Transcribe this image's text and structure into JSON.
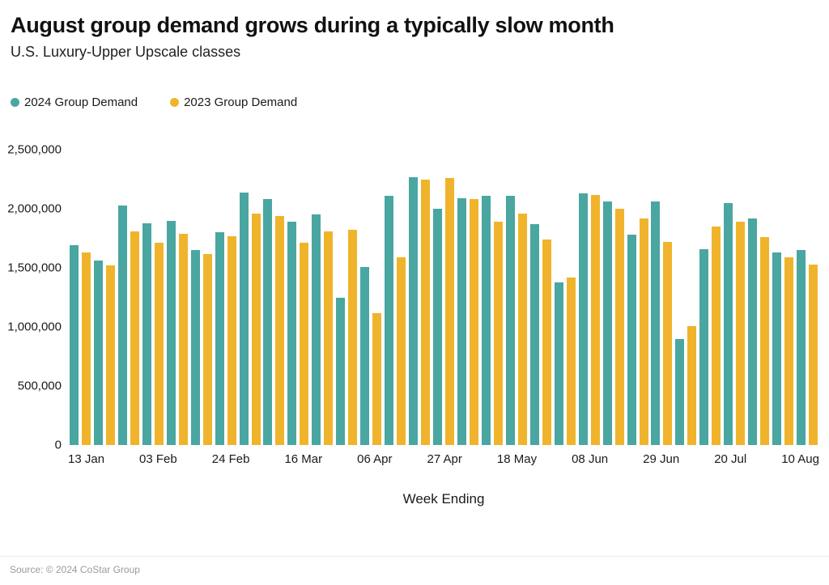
{
  "title": "August group demand grows during a typically slow month",
  "subtitle": "U.S. Luxury-Upper Upscale classes",
  "legend": [
    {
      "label": "2024 Group Demand",
      "color": "#4AA6A1"
    },
    {
      "label": "2023 Group Demand",
      "color": "#F0B42C"
    }
  ],
  "xaxis_title": "Week Ending",
  "source": "Source: © 2024 CoStar Group",
  "colors": {
    "series_2024": "#4AA6A1",
    "series_2023": "#F0B42C",
    "text": "#1a1a1a",
    "source_text": "#9a9a9a"
  },
  "chart_data": {
    "type": "bar",
    "title": "August group demand grows during a typically slow month",
    "subtitle": "U.S. Luxury-Upper Upscale classes",
    "xlabel": "Week Ending",
    "ylabel": "",
    "ylim": [
      0,
      2500000
    ],
    "grid": false,
    "legend_position": "top-left",
    "ytick_values": [
      0,
      500000,
      1000000,
      1500000,
      2000000,
      2500000
    ],
    "ytick_labels": [
      "0",
      "500,000",
      "1,000,000",
      "1,500,000",
      "2,000,000",
      "2,500,000"
    ],
    "categories": [
      "13 Jan",
      "",
      "",
      "03 Feb",
      "",
      "",
      "24 Feb",
      "",
      "",
      "16 Mar",
      "",
      "",
      "06 Apr",
      "",
      "",
      "27 Apr",
      "",
      "",
      "18 May",
      "",
      "",
      "08 Jun",
      "",
      "",
      "29 Jun",
      "",
      "",
      "20 Jul",
      "",
      "",
      "10 Aug"
    ],
    "labeled_ticks": [
      "13 Jan",
      "03 Feb",
      "24 Feb",
      "16 Mar",
      "06 Apr",
      "27 Apr",
      "18 May",
      "08 Jun",
      "29 Jun",
      "20 Jul",
      "10 Aug"
    ],
    "series": [
      {
        "name": "2024 Group Demand",
        "color": "#4AA6A1",
        "values": [
          1690000,
          1560000,
          2030000,
          1880000,
          1900000,
          1650000,
          1800000,
          2140000,
          2080000,
          1890000,
          1950000,
          1250000,
          1510000,
          2110000,
          2270000,
          2000000,
          2090000,
          2110000,
          2110000,
          1870000,
          1380000,
          2130000,
          2060000,
          1780000,
          2060000,
          900000,
          1660000,
          2050000,
          1920000,
          1630000,
          1650000
        ]
      },
      {
        "name": "2023 Group Demand",
        "color": "#F0B42C",
        "values": [
          1630000,
          1520000,
          1810000,
          1710000,
          1790000,
          1620000,
          1770000,
          1960000,
          1940000,
          1710000,
          1810000,
          1820000,
          1120000,
          1590000,
          2250000,
          2260000,
          2080000,
          1890000,
          1960000,
          1740000,
          1420000,
          2120000,
          2000000,
          1920000,
          1720000,
          1010000,
          1850000,
          1890000,
          1760000,
          1590000,
          1530000
        ]
      }
    ]
  }
}
